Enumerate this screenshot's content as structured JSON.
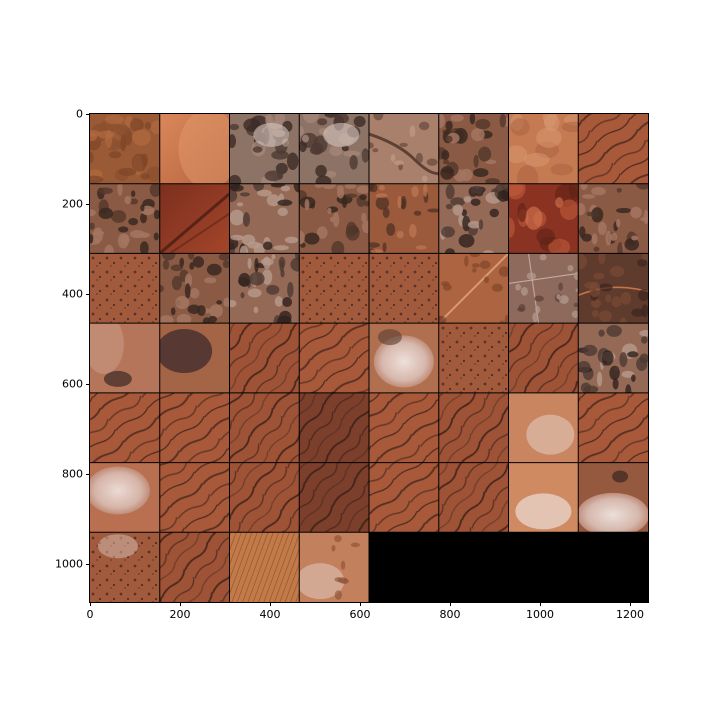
{
  "figure": {
    "description_free": true
  },
  "axes": {
    "x_ticks": [
      "0",
      "200",
      "400",
      "600",
      "800",
      "1000",
      "1200"
    ],
    "y_ticks": [
      "0",
      "200",
      "400",
      "600",
      "800",
      "1000"
    ],
    "x_tick_values": [
      0,
      200,
      400,
      600,
      800,
      1000,
      1200
    ],
    "y_tick_values": [
      0,
      200,
      400,
      600,
      800,
      1000
    ],
    "xlim": [
      0,
      1240
    ],
    "ylim": [
      1085,
      0
    ]
  },
  "mosaic": {
    "columns": 8,
    "rows": 7,
    "tile_count": 52,
    "empty_fill": "#000000"
  },
  "palette": {
    "sand": "#b86a43",
    "rust": "#9c4a2e",
    "dark_soil": "#6e3b2a",
    "scrub": "#4d3a33",
    "cloud": "#e6d8d2",
    "light_sand": "#d48a5e",
    "deep_red": "#8a3322",
    "grey_brown": "#8d7365"
  }
}
